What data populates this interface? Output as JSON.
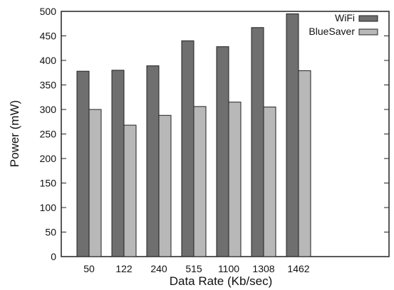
{
  "chart_data": {
    "type": "bar",
    "xlabel": "Data Rate (Kb/sec)",
    "ylabel": "Power (mW)",
    "categories": [
      "50",
      "122",
      "240",
      "515",
      "1100",
      "1308",
      "1462"
    ],
    "series": [
      {
        "name": "WiFi",
        "values": [
          378,
          380,
          389,
          440,
          428,
          467,
          495
        ],
        "color": "#6f6f6f"
      },
      {
        "name": "BlueSaver",
        "values": [
          300,
          268,
          288,
          306,
          315,
          305,
          379
        ],
        "color": "#b8b8b8"
      }
    ],
    "ylim": [
      0,
      500
    ],
    "yticks": [
      "0",
      "50",
      "100",
      "150",
      "200",
      "250",
      "300",
      "350",
      "400",
      "450",
      "500"
    ],
    "grid": false,
    "legend_position": "top-right"
  }
}
